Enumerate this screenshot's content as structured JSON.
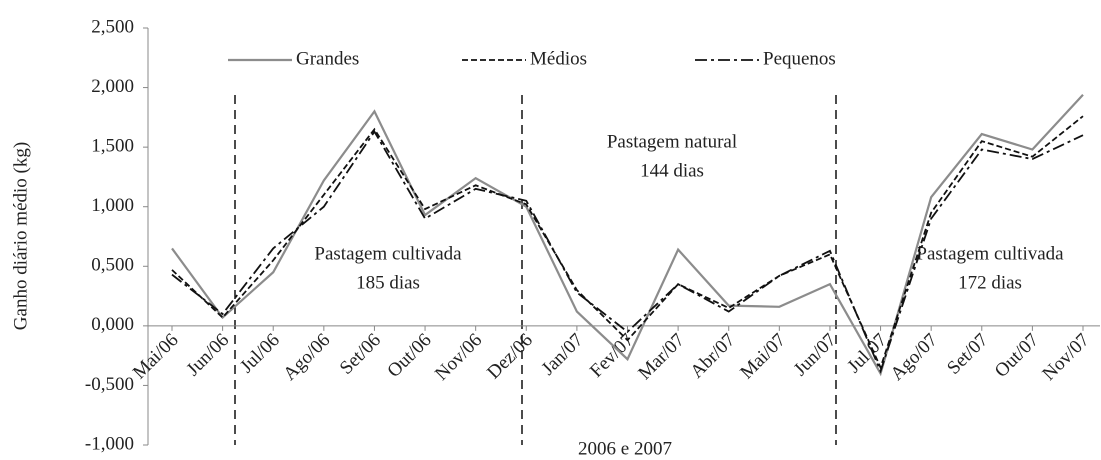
{
  "chart_data": {
    "type": "line",
    "categories": [
      "Mai/06",
      "Jun/06",
      "Jul/06",
      "Ago/06",
      "Set/06",
      "Out/06",
      "Nov/06",
      "Dez/06",
      "Jan/07",
      "Fev/07",
      "Mar/07",
      "Abr/07",
      "Mai/07",
      "Jun/07",
      "Jul/07",
      "Ago/07",
      "Set/07",
      "Out/07",
      "Nov/07"
    ],
    "series": [
      {
        "name": "Grandes",
        "color": "#8c8c8c",
        "dash": "solid",
        "values": [
          0.65,
          0.07,
          0.45,
          1.22,
          1.8,
          0.93,
          1.24,
          1.0,
          0.12,
          -0.28,
          0.64,
          0.17,
          0.16,
          0.35,
          -0.4,
          1.08,
          1.61,
          1.48,
          1.94
        ]
      },
      {
        "name": "Médios",
        "color": "#111111",
        "dash": "dashed",
        "values": [
          0.47,
          0.07,
          0.55,
          1.1,
          1.65,
          0.98,
          1.18,
          1.02,
          0.3,
          -0.12,
          0.35,
          0.15,
          0.42,
          0.6,
          -0.35,
          0.95,
          1.55,
          1.42,
          1.76
        ]
      },
      {
        "name": "Pequenos",
        "color": "#111111",
        "dash": "dashdot",
        "values": [
          0.43,
          0.1,
          0.65,
          1.0,
          1.63,
          0.9,
          1.15,
          1.05,
          0.28,
          -0.05,
          0.35,
          0.12,
          0.42,
          0.63,
          -0.38,
          0.9,
          1.48,
          1.4,
          1.6
        ]
      }
    ],
    "ylim": [
      -1,
      2.5
    ],
    "yticks": [
      {
        "value": -1,
        "label": "-1,000"
      },
      {
        "value": -0.5,
        "label": "-0,500"
      },
      {
        "value": 0,
        "label": "0,000"
      },
      {
        "value": 0.5,
        "label": "0,500"
      },
      {
        "value": 1,
        "label": "1,000"
      },
      {
        "value": 1.5,
        "label": "1,500"
      },
      {
        "value": 2,
        "label": "2,000"
      },
      {
        "value": 2.5,
        "label": "2,500"
      }
    ],
    "ylabel": "Ganho diário médio (kg)",
    "xlabel": "2006 e 2007",
    "annotations": [
      [
        "Pastagem cultivada",
        "185 dias"
      ],
      [
        "Pastagem natural",
        "144 dias"
      ],
      [
        "Pastagem cultivada",
        "172 dias"
      ]
    ],
    "legend": "top"
  }
}
